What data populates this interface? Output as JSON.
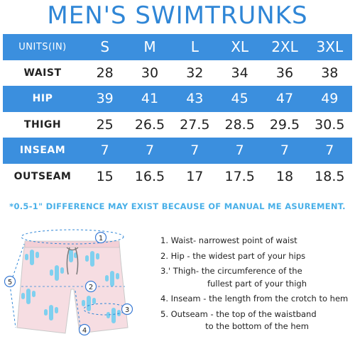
{
  "title": "MEN'S SWIMTRUNKS",
  "table": {
    "header": {
      "label": "UNITS(IN)",
      "sizes": [
        "S",
        "M",
        "L",
        "XL",
        "2XL",
        "3XL"
      ]
    },
    "rows": [
      {
        "label": "WAIST",
        "values": [
          "28",
          "30",
          "32",
          "34",
          "36",
          "38"
        ]
      },
      {
        "label": "HIP",
        "values": [
          "39",
          "41",
          "43",
          "45",
          "47",
          "49"
        ]
      },
      {
        "label": "THIGH",
        "values": [
          "25",
          "26.5",
          "27.5",
          "28.5",
          "29.5",
          "30.5"
        ]
      },
      {
        "label": "INSEAM",
        "values": [
          "7",
          "7",
          "7",
          "7",
          "7",
          "7"
        ]
      },
      {
        "label": "OUTSEAM",
        "values": [
          "15",
          "16.5",
          "17",
          "17.5",
          "18",
          "18.5"
        ]
      }
    ]
  },
  "note": "*0.5-1\" DIFFERENCE MAY EXIST BECAUSE OF MANUAL ME ASUREMENT.",
  "markers": [
    "1",
    "2",
    "3",
    "4",
    "5"
  ],
  "legend": [
    {
      "line1": "1. Waist- narrowest point of waist",
      "line2": ""
    },
    {
      "line1": "2. Hip - the widest part of your hips",
      "line2": ""
    },
    {
      "line1": "3.' Thigh- the circumference of the",
      "line2": "fullest part of your thigh"
    },
    {
      "line1": "4. Inseam - the length from the crotch to hem",
      "line2": ""
    },
    {
      "line1": "5. Outseam - the top of the waistband",
      "line2": "to the bottom of the hem"
    }
  ],
  "colors": {
    "accent": "#3b8fde",
    "title": "#2f86d6",
    "note": "#4ab0e8",
    "marker": "#3a7bd5",
    "cactus": "#7fd0ef",
    "fabric": "#f6dde2"
  }
}
